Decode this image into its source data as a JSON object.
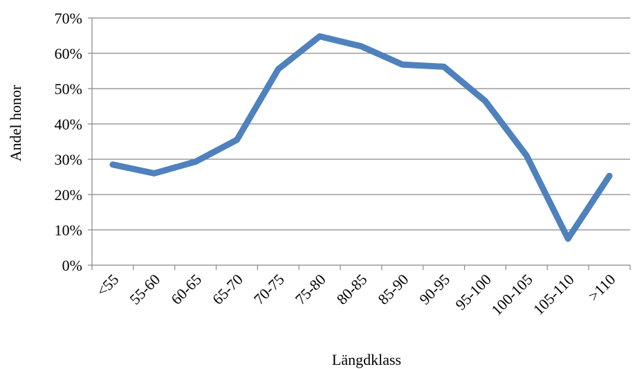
{
  "chart_data": {
    "type": "line",
    "xlabel": "Längdklass",
    "ylabel": "Andel honor",
    "categories": [
      "<55",
      "55-60",
      "60-65",
      "65-70",
      "70-75",
      "75-80",
      "80-85",
      "85-90",
      "90-95",
      "95-100",
      "100-105",
      "105-110",
      ">110"
    ],
    "series": [
      {
        "values": [
          28.5,
          26.0,
          29.3,
          35.5,
          55.5,
          64.8,
          62.0,
          56.8,
          56.2,
          46.5,
          31.0,
          7.5,
          25.3
        ],
        "color": "#4f81bd"
      }
    ],
    "ylim": [
      0,
      70
    ],
    "yticks": [
      0,
      10,
      20,
      30,
      40,
      50,
      60,
      70
    ],
    "ytick_labels": [
      "0%",
      "10%",
      "20%",
      "30%",
      "40%",
      "50%",
      "60%",
      "70%"
    ],
    "grid": true,
    "legend": "none"
  }
}
